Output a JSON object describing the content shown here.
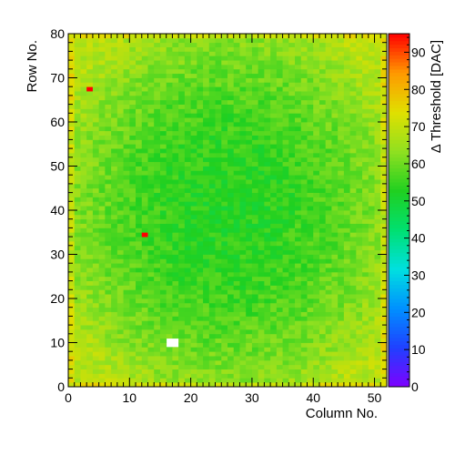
{
  "chart_data": {
    "type": "heatmap",
    "title": "",
    "xlabel": "Column No.",
    "ylabel": "Row No.",
    "zlabel": "Δ Threshold [DAC]",
    "x_range": [
      0,
      52
    ],
    "y_range": [
      0,
      80
    ],
    "z_range": [
      0,
      95
    ],
    "columns": 52,
    "rows": 80,
    "x_ticks": [
      0,
      10,
      20,
      30,
      40,
      50
    ],
    "y_ticks": [
      0,
      10,
      20,
      30,
      40,
      50,
      60,
      70,
      80
    ],
    "z_ticks": [
      0,
      10,
      20,
      30,
      40,
      50,
      60,
      70,
      80,
      90
    ],
    "pattern": {
      "center_value": 53,
      "edge_value": 68,
      "noise_amplitude": 4
    },
    "outliers": [
      {
        "column": 3,
        "row": 67,
        "value": 95
      },
      {
        "column": 12,
        "row": 34,
        "value": 95
      }
    ],
    "empty_pixels": [
      {
        "column": 16,
        "row": 9
      },
      {
        "column": 16,
        "row": 10
      },
      {
        "column": 17,
        "row": 9
      },
      {
        "column": 17,
        "row": 10
      }
    ],
    "palette": [
      "#7f00ff",
      "#2040ff",
      "#0090ff",
      "#00e0e0",
      "#00e070",
      "#20d020",
      "#90e020",
      "#e0e000",
      "#ff9900",
      "#ff0000"
    ]
  }
}
